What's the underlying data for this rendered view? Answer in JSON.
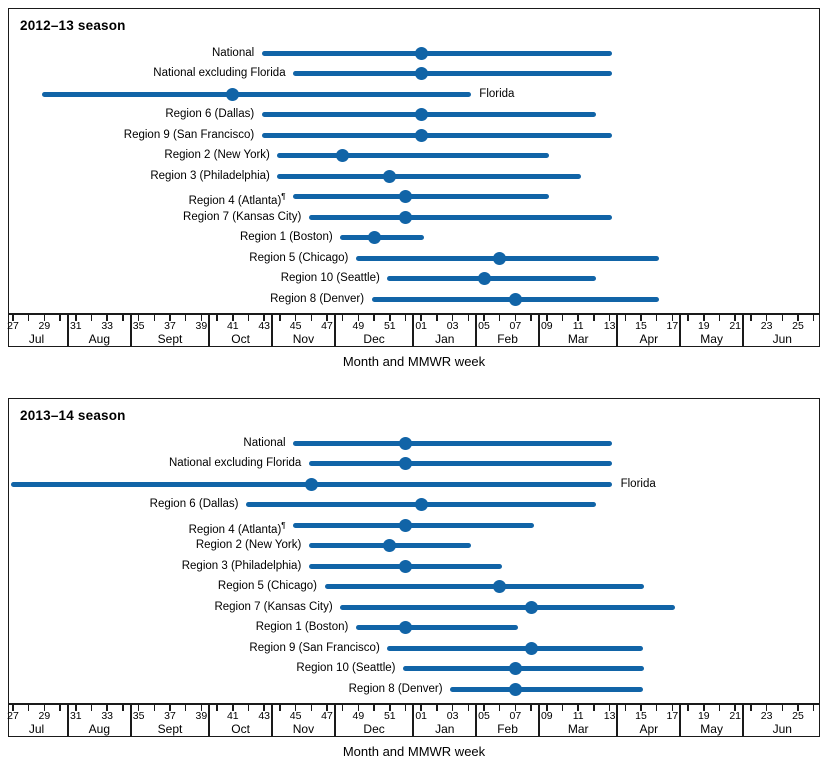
{
  "page": {
    "background": "#ffffff"
  },
  "colors": {
    "line_blue": "#1164a7",
    "axis_black": "#1a1a1a"
  },
  "chart_data": [
    {
      "type": "range-dot",
      "title": "2012–13 season",
      "xlabel": "Month and MMWR week",
      "x_axis": {
        "tick_labels": [
          "27",
          "29",
          "31",
          "33",
          "35",
          "37",
          "39",
          "41",
          "43",
          "45",
          "47",
          "49",
          "51",
          "01",
          "03",
          "05",
          "07",
          "09",
          "11",
          "13",
          "15",
          "17",
          "19",
          "21",
          "23",
          "25"
        ],
        "months": [
          {
            "label": "Jul",
            "weeks": 4
          },
          {
            "label": "Aug",
            "weeks": 4
          },
          {
            "label": "Sept",
            "weeks": 5
          },
          {
            "label": "Oct",
            "weeks": 4
          },
          {
            "label": "Nov",
            "weeks": 4
          },
          {
            "label": "Dec",
            "weeks": 5
          },
          {
            "label": "Jan",
            "weeks": 4
          },
          {
            "label": "Feb",
            "weeks": 4
          },
          {
            "label": "Mar",
            "weeks": 5
          },
          {
            "label": "Apr",
            "weeks": 4
          },
          {
            "label": "May",
            "weeks": 4
          },
          {
            "label": "Jun",
            "weeks": 5
          }
        ]
      },
      "series": [
        {
          "label": "National",
          "label_side": "left",
          "start_week": 43,
          "peak_week": 1,
          "end_week": 13
        },
        {
          "label": "National excluding Florida",
          "label_side": "left",
          "start_week": 45,
          "peak_week": 1,
          "end_week": 13
        },
        {
          "label": "Florida",
          "label_side": "right",
          "start_week": 29,
          "peak_week": 41,
          "end_week": 4
        },
        {
          "label": "Region 6 (Dallas)",
          "label_side": "left",
          "start_week": 43,
          "peak_week": 1,
          "end_week": 12
        },
        {
          "label": "Region 9 (San Francisco)",
          "label_side": "left",
          "start_week": 43,
          "peak_week": 1,
          "end_week": 13
        },
        {
          "label": "Region 2 (New York)",
          "label_side": "left",
          "start_week": 44,
          "peak_week": 48,
          "end_week": 9
        },
        {
          "label": "Region 3 (Philadelphia)",
          "label_side": "left",
          "start_week": 44,
          "peak_week": 51,
          "end_week": 11
        },
        {
          "label": "Region 4 (Atlanta)",
          "footnote": "¶",
          "label_side": "left",
          "start_week": 45,
          "peak_week": 52,
          "end_week": 9
        },
        {
          "label": "Region 7 (Kansas City)",
          "label_side": "left",
          "start_week": 46,
          "peak_week": 52,
          "end_week": 13
        },
        {
          "label": "Region 1 (Boston)",
          "label_side": "left",
          "start_week": 48,
          "peak_week": 50,
          "end_week": 1
        },
        {
          "label": "Region 5 (Chicago)",
          "label_side": "left",
          "start_week": 49,
          "peak_week": 6,
          "end_week": 16
        },
        {
          "label": "Region 10 (Seattle)",
          "label_side": "left",
          "start_week": 51,
          "peak_week": 5,
          "end_week": 12
        },
        {
          "label": "Region 8 (Denver)",
          "label_side": "left",
          "start_week": 50,
          "peak_week": 7,
          "end_week": 16
        }
      ]
    },
    {
      "type": "range-dot",
      "title": "2013–14 season",
      "xlabel": "Month and MMWR week",
      "x_axis": {
        "tick_labels": [
          "27",
          "29",
          "31",
          "33",
          "35",
          "37",
          "39",
          "41",
          "43",
          "45",
          "47",
          "49",
          "51",
          "01",
          "03",
          "05",
          "07",
          "09",
          "11",
          "13",
          "15",
          "17",
          "19",
          "21",
          "23",
          "25"
        ],
        "months": [
          {
            "label": "Jul",
            "weeks": 4
          },
          {
            "label": "Aug",
            "weeks": 4
          },
          {
            "label": "Sept",
            "weeks": 5
          },
          {
            "label": "Oct",
            "weeks": 4
          },
          {
            "label": "Nov",
            "weeks": 4
          },
          {
            "label": "Dec",
            "weeks": 5
          },
          {
            "label": "Jan",
            "weeks": 4
          },
          {
            "label": "Feb",
            "weeks": 4
          },
          {
            "label": "Mar",
            "weeks": 5
          },
          {
            "label": "Apr",
            "weeks": 4
          },
          {
            "label": "May",
            "weeks": 4
          },
          {
            "label": "Jun",
            "weeks": 5
          }
        ]
      },
      "series": [
        {
          "label": "National",
          "label_side": "left",
          "start_week": 45,
          "peak_week": 52,
          "end_week": 13
        },
        {
          "label": "National excluding Florida",
          "label_side": "left",
          "start_week": 46,
          "peak_week": 52,
          "end_week": 13
        },
        {
          "label": "Florida",
          "label_side": "right",
          "start_week": 27,
          "peak_week": 46,
          "end_week": 13
        },
        {
          "label": "Region 6 (Dallas)",
          "label_side": "left",
          "start_week": 42,
          "peak_week": 1,
          "end_week": 12
        },
        {
          "label": "Region 4 (Atlanta)",
          "footnote": "¶",
          "label_side": "left",
          "start_week": 45,
          "peak_week": 52,
          "end_week": 8
        },
        {
          "label": "Region 2 (New York)",
          "label_side": "left",
          "start_week": 46,
          "peak_week": 51,
          "end_week": 4
        },
        {
          "label": "Region 3 (Philadelphia)",
          "label_side": "left",
          "start_week": 46,
          "peak_week": 52,
          "end_week": 6
        },
        {
          "label": "Region 5 (Chicago)",
          "label_side": "left",
          "start_week": 47,
          "peak_week": 6,
          "end_week": 15
        },
        {
          "label": "Region 7 (Kansas City)",
          "label_side": "left",
          "start_week": 48,
          "peak_week": 8,
          "end_week": 17
        },
        {
          "label": "Region 1 (Boston)",
          "label_side": "left",
          "start_week": 49,
          "peak_week": 52,
          "end_week": 7
        },
        {
          "label": "Region 9 (San Francisco)",
          "label_side": "left",
          "start_week": 51,
          "peak_week": 8,
          "end_week": 15
        },
        {
          "label": "Region 10 (Seattle)",
          "label_side": "left",
          "start_week": 52,
          "peak_week": 7,
          "end_week": 15
        },
        {
          "label": "Region 8 (Denver)",
          "label_side": "left",
          "start_week": 3,
          "peak_week": 7,
          "end_week": 15
        }
      ]
    }
  ]
}
